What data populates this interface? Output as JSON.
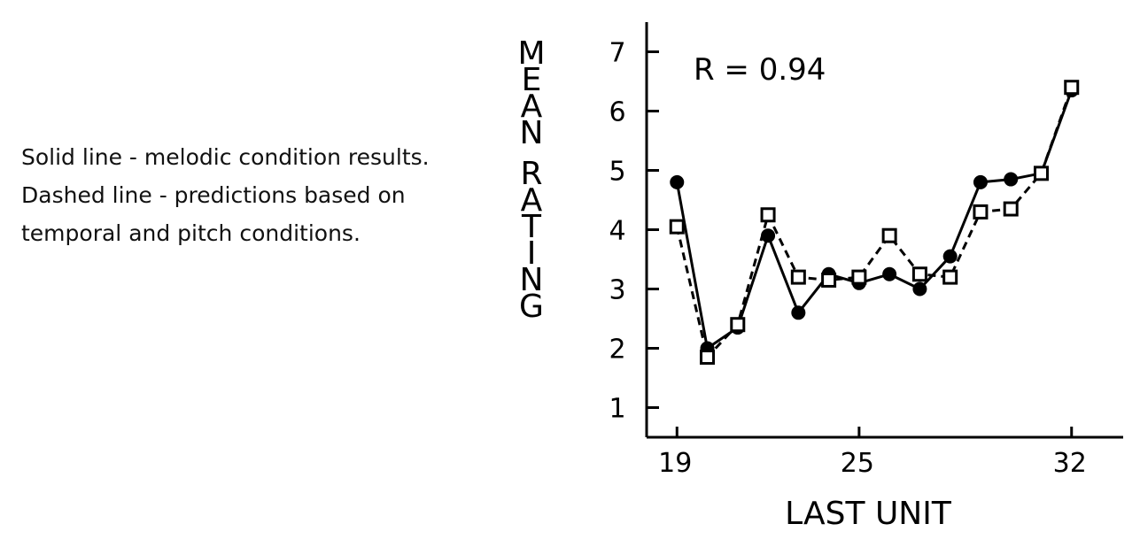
{
  "caption": {
    "line1": "Solid line - melodic condition results.",
    "line2": "Dashed line - predictions based on",
    "line3": "temporal and pitch conditions."
  },
  "chart_data": {
    "type": "line",
    "title": "",
    "xlabel": "LAST UNIT",
    "ylabel": "MEAN RATING",
    "annotation": "R = 0.94",
    "xlim": [
      18,
      33.7
    ],
    "ylim": [
      0.5,
      7.5
    ],
    "x_ticks": [
      19,
      25,
      32
    ],
    "y_ticks": [
      1,
      2,
      3,
      4,
      5,
      6,
      7
    ],
    "grid": false,
    "series": [
      {
        "style": "solid",
        "marker": "filled-circle",
        "color": "#000000",
        "x": [
          19,
          20,
          21,
          22,
          23,
          24,
          25,
          26,
          27,
          28,
          29,
          30,
          31,
          32
        ],
        "values": [
          4.8,
          2.0,
          2.35,
          3.9,
          2.6,
          3.25,
          3.1,
          3.25,
          3.0,
          3.55,
          4.8,
          4.85,
          4.95,
          6.35
        ]
      },
      {
        "style": "dashed",
        "marker": "open-square",
        "color": "#000000",
        "x": [
          19,
          20,
          21,
          22,
          23,
          24,
          25,
          26,
          27,
          28,
          29,
          30,
          31,
          32
        ],
        "values": [
          4.05,
          1.85,
          2.4,
          4.25,
          3.2,
          3.15,
          3.2,
          3.9,
          3.25,
          3.2,
          4.3,
          4.35,
          4.95,
          6.4
        ]
      }
    ]
  }
}
